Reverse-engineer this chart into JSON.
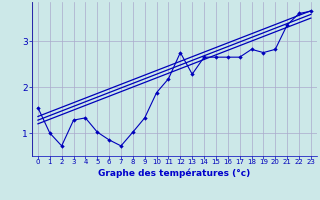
{
  "bg_color": "#cce8e8",
  "grid_color": "#aaaacc",
  "line_color": "#0000bb",
  "xlabel": "Graphe des températures (°c)",
  "xlabel_color": "#0000cc",
  "xlim": [
    -0.5,
    23.5
  ],
  "ylim": [
    0.5,
    3.85
  ],
  "yticks": [
    1,
    2,
    3
  ],
  "xticks": [
    0,
    1,
    2,
    3,
    4,
    5,
    6,
    7,
    8,
    9,
    10,
    11,
    12,
    13,
    14,
    15,
    16,
    17,
    18,
    19,
    20,
    21,
    22,
    23
  ],
  "scatter_x": [
    0,
    1,
    2,
    3,
    4,
    5,
    6,
    7,
    8,
    9,
    10,
    11,
    12,
    13,
    14,
    15,
    16,
    17,
    18,
    19,
    20,
    21,
    22,
    23
  ],
  "scatter_y": [
    1.55,
    1.0,
    0.72,
    1.28,
    1.33,
    1.02,
    0.85,
    0.72,
    1.02,
    1.33,
    1.88,
    2.18,
    2.75,
    2.28,
    2.65,
    2.65,
    2.65,
    2.65,
    2.82,
    2.75,
    2.82,
    3.35,
    3.6,
    3.65
  ],
  "line1_x": [
    0,
    23
  ],
  "line1_y": [
    1.2,
    3.5
  ],
  "line2_x": [
    0,
    23
  ],
  "line2_y": [
    1.28,
    3.58
  ],
  "line3_x": [
    0,
    23
  ],
  "line3_y": [
    1.36,
    3.66
  ]
}
